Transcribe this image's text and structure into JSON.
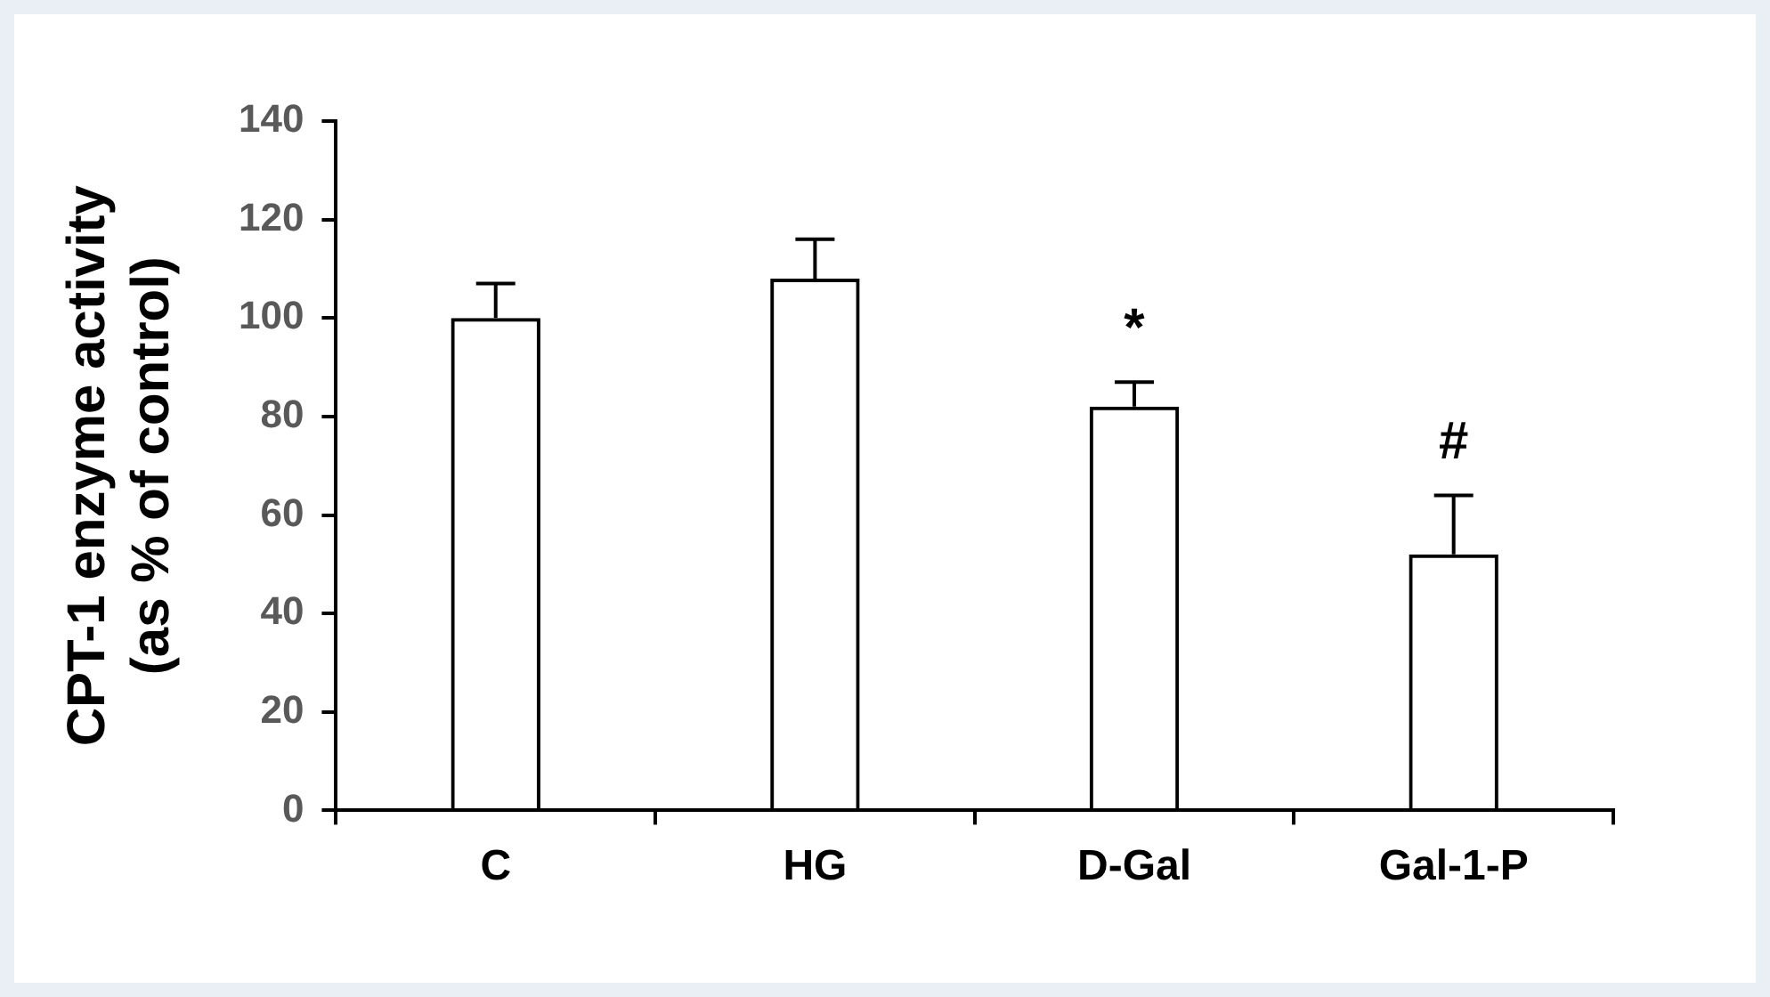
{
  "chart_data": {
    "type": "bar",
    "ylabel": "CPT-1 enzyme activity\n(as % of control)",
    "categories": [
      "C",
      "HG",
      "D-Gal",
      "Gal-1-P"
    ],
    "values": [
      100,
      108,
      82,
      52
    ],
    "color": "#000000",
    "errors": [
      [
        100,
        107
      ],
      [
        108,
        116
      ],
      [
        82,
        87
      ],
      [
        52,
        64
      ]
    ],
    "ylim": [
      0,
      140
    ],
    "yticks": [
      0,
      20,
      40,
      60,
      80,
      100,
      120,
      140
    ],
    "grid": false,
    "legend": false,
    "annotations": [
      "*",
      "#"
    ]
  }
}
